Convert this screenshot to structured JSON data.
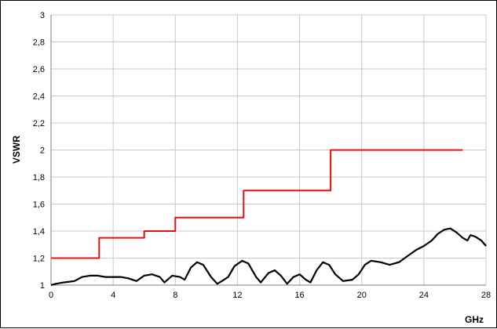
{
  "chart_data": {
    "type": "line",
    "title": "",
    "xlabel": "GHz",
    "ylabel": "VSWR",
    "xlim": [
      0,
      28
    ],
    "ylim": [
      1,
      3
    ],
    "x_ticks": [
      0,
      4,
      8,
      12,
      16,
      20,
      24,
      28
    ],
    "x_tick_labels": [
      "0",
      "4",
      "8",
      "12",
      "16",
      "20",
      "24",
      "28"
    ],
    "y_ticks": [
      1,
      1.2,
      1.4,
      1.6,
      1.8,
      2,
      2.2,
      2.4,
      2.6,
      2.8,
      3
    ],
    "y_tick_labels": [
      "1",
      "1,2",
      "1,4",
      "1,6",
      "1,8",
      "2",
      "2,2",
      "2,4",
      "2,6",
      "2,8",
      "3"
    ],
    "grid": true,
    "legend": "none",
    "series": [
      {
        "color": "#e81010",
        "style": "step",
        "points": [
          [
            0,
            1.2
          ],
          [
            3.1,
            1.2
          ],
          [
            3.1,
            1.35
          ],
          [
            6.0,
            1.35
          ],
          [
            6.0,
            1.4
          ],
          [
            8.0,
            1.4
          ],
          [
            8.0,
            1.5
          ],
          [
            12.4,
            1.5
          ],
          [
            12.4,
            1.7
          ],
          [
            18.0,
            1.7
          ],
          [
            18.0,
            2.0
          ],
          [
            26.5,
            2.0
          ]
        ]
      },
      {
        "color": "#000000",
        "style": "line",
        "points": [
          [
            0,
            1.0
          ],
          [
            0.3,
            1.01
          ],
          [
            0.8,
            1.02
          ],
          [
            1.5,
            1.03
          ],
          [
            2.0,
            1.06
          ],
          [
            2.5,
            1.07
          ],
          [
            3.0,
            1.07
          ],
          [
            3.5,
            1.06
          ],
          [
            4.5,
            1.06
          ],
          [
            5.0,
            1.05
          ],
          [
            5.5,
            1.03
          ],
          [
            6.0,
            1.07
          ],
          [
            6.5,
            1.08
          ],
          [
            7.0,
            1.06
          ],
          [
            7.3,
            1.02
          ],
          [
            7.8,
            1.07
          ],
          [
            8.3,
            1.06
          ],
          [
            8.6,
            1.04
          ],
          [
            9.0,
            1.13
          ],
          [
            9.4,
            1.17
          ],
          [
            9.8,
            1.15
          ],
          [
            10.3,
            1.06
          ],
          [
            10.7,
            1.01
          ],
          [
            11.0,
            1.03
          ],
          [
            11.4,
            1.06
          ],
          [
            11.8,
            1.14
          ],
          [
            12.3,
            1.18
          ],
          [
            12.7,
            1.16
          ],
          [
            13.2,
            1.06
          ],
          [
            13.5,
            1.02
          ],
          [
            14.0,
            1.09
          ],
          [
            14.4,
            1.11
          ],
          [
            14.8,
            1.07
          ],
          [
            15.2,
            1.01
          ],
          [
            15.6,
            1.06
          ],
          [
            16.0,
            1.08
          ],
          [
            16.4,
            1.04
          ],
          [
            16.7,
            1.02
          ],
          [
            17.1,
            1.11
          ],
          [
            17.5,
            1.17
          ],
          [
            17.9,
            1.15
          ],
          [
            18.3,
            1.08
          ],
          [
            18.8,
            1.03
          ],
          [
            19.4,
            1.04
          ],
          [
            19.8,
            1.08
          ],
          [
            20.2,
            1.15
          ],
          [
            20.6,
            1.18
          ],
          [
            21.2,
            1.17
          ],
          [
            21.8,
            1.15
          ],
          [
            22.4,
            1.17
          ],
          [
            23.0,
            1.22
          ],
          [
            23.5,
            1.26
          ],
          [
            24.0,
            1.29
          ],
          [
            24.5,
            1.33
          ],
          [
            24.9,
            1.38
          ],
          [
            25.3,
            1.41
          ],
          [
            25.7,
            1.42
          ],
          [
            26.1,
            1.39
          ],
          [
            26.5,
            1.35
          ],
          [
            26.8,
            1.33
          ],
          [
            27.0,
            1.37
          ],
          [
            27.3,
            1.36
          ],
          [
            27.7,
            1.33
          ],
          [
            28.0,
            1.29
          ]
        ]
      }
    ]
  }
}
